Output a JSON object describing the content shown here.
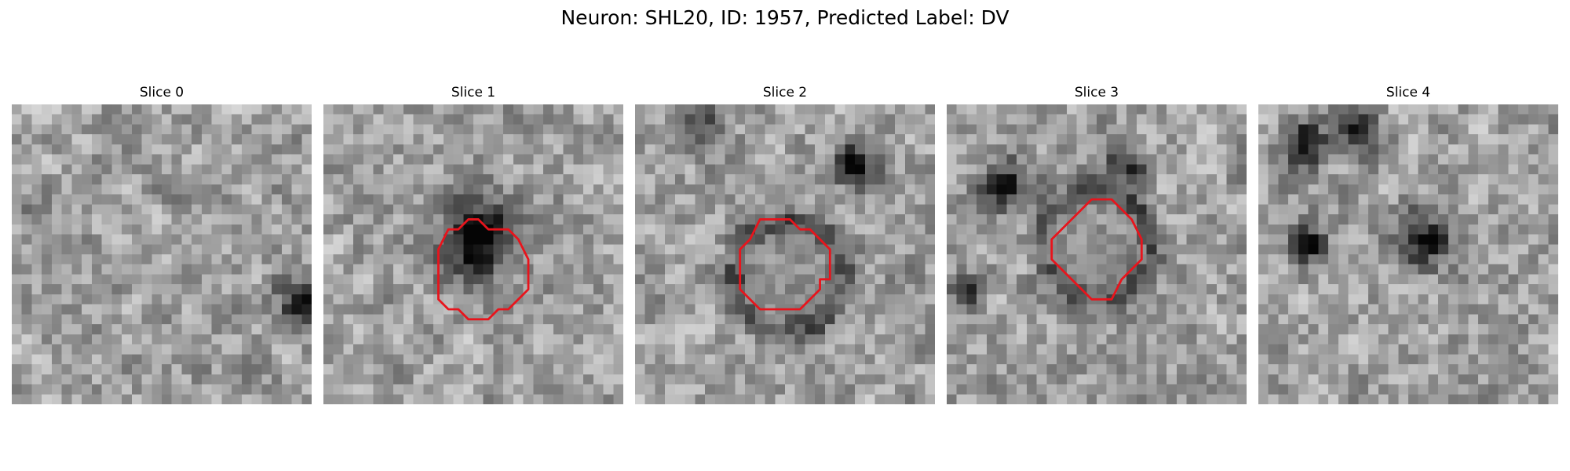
{
  "figure": {
    "title": "Neuron: SHL20, ID: 1957, Predicted Label: DV"
  },
  "contour_color": "#e8141c",
  "panels": [
    {
      "title": "Slice 0",
      "has_contour": false,
      "seed": 11,
      "blob_strength": 0.1
    },
    {
      "title": "Slice 1",
      "has_contour": true,
      "seed": 23,
      "blob_strength": 0.72
    },
    {
      "title": "Slice 2",
      "has_contour": true,
      "seed": 37,
      "blob_strength": 0.55
    },
    {
      "title": "Slice 3",
      "has_contour": true,
      "seed": 41,
      "blob_strength": 0.5
    },
    {
      "title": "Slice 4",
      "has_contour": false,
      "seed": 53,
      "blob_strength": 0.6
    }
  ]
}
